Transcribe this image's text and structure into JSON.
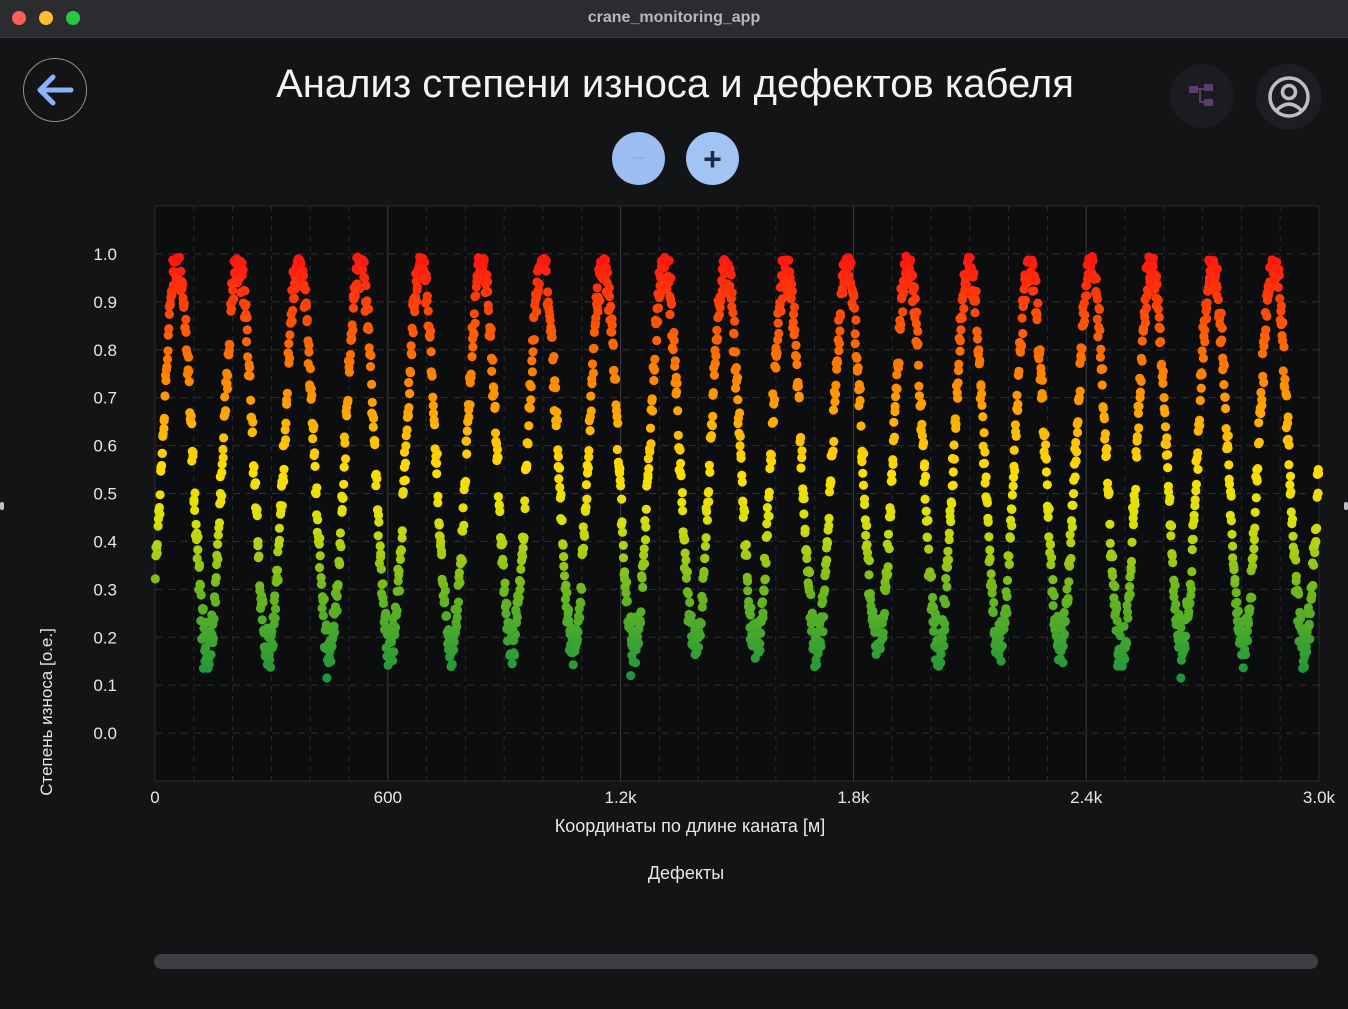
{
  "window": {
    "title": "crane_monitoring_app"
  },
  "header": {
    "title": "Анализ степени износа и дефектов кабеля",
    "back_icon": "arrow-left-icon",
    "tree_icon": "tree-structure-icon",
    "profile_icon": "user-circle-icon"
  },
  "zoom": {
    "out_label": "−",
    "in_label": "+"
  },
  "colors": {
    "background": "#131416",
    "plot_background": "#0c0d0f",
    "accent": "#a2c4f4",
    "wear_low": "#1f9b3a",
    "wear_mid": "#f5e400",
    "wear_high": "#ff1a10"
  },
  "section": {
    "label": "Дефекты"
  },
  "chart_data": {
    "type": "scatter",
    "xlabel": "Координаты по длине каната [м]",
    "ylabel": "Степень износа [о.е.]",
    "xlim": [
      0,
      3000
    ],
    "ylim": [
      -0.1,
      1.1
    ],
    "x_ticks": [
      0,
      600,
      1200,
      1800,
      2400,
      3000
    ],
    "x_tick_labels": [
      "0",
      "600",
      "1.2k",
      "1.8k",
      "2.4k",
      "3.0k"
    ],
    "y_ticks": [
      0.0,
      0.1,
      0.2,
      0.3,
      0.4,
      0.5,
      0.6,
      0.7,
      0.8,
      0.9,
      1.0
    ],
    "y_tick_labels": [
      "0.0",
      "0.1",
      "0.2",
      "0.3",
      "0.4",
      "0.5",
      "0.6",
      "0.7",
      "0.8",
      "0.9",
      "1.0"
    ],
    "grid": true,
    "color_by_value": true,
    "pattern": "periodic",
    "period_m": 157,
    "peak_positions_m": [
      57,
      214,
      370,
      527,
      684,
      841,
      998,
      1155,
      1311,
      1468,
      1625,
      1782,
      1939,
      2096,
      2252,
      2409,
      2566,
      2723,
      2880
    ],
    "peak_value": 0.98,
    "trough_value": 0.18,
    "outlier_points": [
      {
        "x": 125,
        "y": 0.135
      },
      {
        "x": 443,
        "y": 0.115
      },
      {
        "x": 1226,
        "y": 0.12
      },
      {
        "x": 2481,
        "y": 0.14
      },
      {
        "x": 2644,
        "y": 0.115
      },
      {
        "x": 2958,
        "y": 0.135
      }
    ]
  }
}
